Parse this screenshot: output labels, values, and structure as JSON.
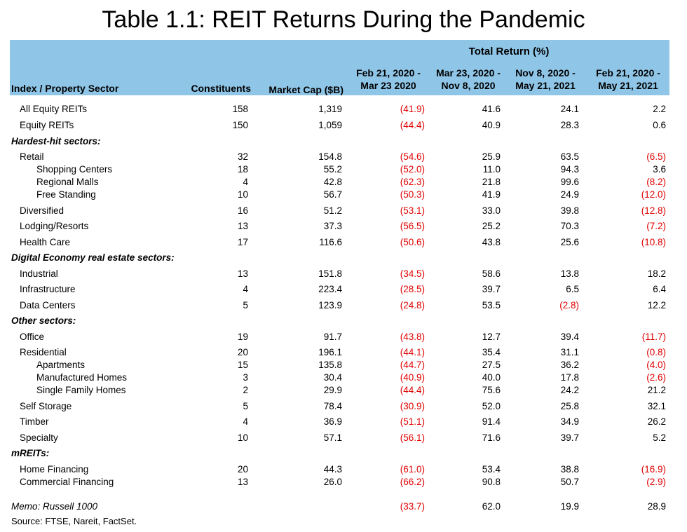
{
  "title": "Table 1.1: REIT Returns During the Pandemic",
  "header": {
    "group_label": "Total Return (%)",
    "col_sector": "Index / Property Sector",
    "col_constituents": "Constituents",
    "col_market_cap": "Market Cap ($B)",
    "periods": [
      [
        "Feb 21, 2020 -",
        "Mar 23 2020"
      ],
      [
        "Mar 23, 2020 -",
        "Nov 8, 2020"
      ],
      [
        "Nov 8, 2020 -",
        "May 21, 2021"
      ],
      [
        "Feb 21, 2020 -",
        "May 21, 2021"
      ]
    ]
  },
  "rows": [
    {
      "kind": "row",
      "name": "All Equity REITs",
      "constituents": "158",
      "market_cap": "1,319",
      "returns": [
        "(41.9)",
        "41.6",
        "24.1",
        "2.2"
      ]
    },
    {
      "kind": "row",
      "name": "Equity REITs",
      "constituents": "150",
      "market_cap": "1,059",
      "returns": [
        "(44.4)",
        "40.9",
        "28.3",
        "0.6"
      ]
    },
    {
      "kind": "section",
      "name": "Hardest-hit sectors:"
    },
    {
      "kind": "row",
      "name": "Retail",
      "constituents": "32",
      "market_cap": "154.8",
      "returns": [
        "(54.6)",
        "25.9",
        "63.5",
        "(6.5)"
      ]
    },
    {
      "kind": "sub",
      "name": "Shopping Centers",
      "constituents": "18",
      "market_cap": "55.2",
      "returns": [
        "(52.0)",
        "11.0",
        "94.3",
        "3.6"
      ]
    },
    {
      "kind": "sub",
      "name": "Regional Malls",
      "constituents": "4",
      "market_cap": "42.8",
      "returns": [
        "(62.3)",
        "21.8",
        "99.6",
        "(8.2)"
      ]
    },
    {
      "kind": "sub",
      "name": "Free Standing",
      "constituents": "10",
      "market_cap": "56.7",
      "returns": [
        "(50.3)",
        "41.9",
        "24.9",
        "(12.0)"
      ]
    },
    {
      "kind": "row",
      "name": "Diversified",
      "constituents": "16",
      "market_cap": "51.2",
      "returns": [
        "(53.1)",
        "33.0",
        "39.8",
        "(12.8)"
      ]
    },
    {
      "kind": "row",
      "name": "Lodging/Resorts",
      "constituents": "13",
      "market_cap": "37.3",
      "returns": [
        "(56.5)",
        "25.2",
        "70.3",
        "(7.2)"
      ]
    },
    {
      "kind": "row",
      "name": "Health Care",
      "constituents": "17",
      "market_cap": "116.6",
      "returns": [
        "(50.6)",
        "43.8",
        "25.6",
        "(10.8)"
      ]
    },
    {
      "kind": "section",
      "name": "Digital Economy real estate sectors:"
    },
    {
      "kind": "row",
      "name": "Industrial",
      "constituents": "13",
      "market_cap": "151.8",
      "returns": [
        "(34.5)",
        "58.6",
        "13.8",
        "18.2"
      ]
    },
    {
      "kind": "row",
      "name": "Infrastructure",
      "constituents": "4",
      "market_cap": "223.4",
      "returns": [
        "(28.5)",
        "39.7",
        "6.5",
        "6.4"
      ]
    },
    {
      "kind": "row",
      "name": "Data Centers",
      "constituents": "5",
      "market_cap": "123.9",
      "returns": [
        "(24.8)",
        "53.5",
        "(2.8)",
        "12.2"
      ]
    },
    {
      "kind": "section",
      "name": "Other sectors:"
    },
    {
      "kind": "row",
      "name": "Office",
      "constituents": "19",
      "market_cap": "91.7",
      "returns": [
        "(43.8)",
        "12.7",
        "39.4",
        "(11.7)"
      ]
    },
    {
      "kind": "row",
      "name": "Residential",
      "constituents": "20",
      "market_cap": "196.1",
      "returns": [
        "(44.1)",
        "35.4",
        "31.1",
        "(0.8)"
      ]
    },
    {
      "kind": "sub",
      "name": "Apartments",
      "constituents": "15",
      "market_cap": "135.8",
      "returns": [
        "(44.7)",
        "27.5",
        "36.2",
        "(4.0)"
      ]
    },
    {
      "kind": "sub",
      "name": "Manufactured Homes",
      "constituents": "3",
      "market_cap": "30.4",
      "returns": [
        "(40.9)",
        "40.0",
        "17.8",
        "(2.6)"
      ]
    },
    {
      "kind": "sub",
      "name": "Single Family Homes",
      "constituents": "2",
      "market_cap": "29.9",
      "returns": [
        "(44.4)",
        "75.6",
        "24.2",
        "21.2"
      ]
    },
    {
      "kind": "row",
      "name": "Self Storage",
      "constituents": "5",
      "market_cap": "78.4",
      "returns": [
        "(30.9)",
        "52.0",
        "25.8",
        "32.1"
      ]
    },
    {
      "kind": "row",
      "name": "Timber",
      "constituents": "4",
      "market_cap": "36.9",
      "returns": [
        "(51.1)",
        "91.4",
        "34.9",
        "26.2"
      ]
    },
    {
      "kind": "row",
      "name": "Specialty",
      "constituents": "10",
      "market_cap": "57.1",
      "returns": [
        "(56.1)",
        "71.6",
        "39.7",
        "5.2"
      ]
    },
    {
      "kind": "section",
      "name": "mREITs:"
    },
    {
      "kind": "row",
      "name": "Home Financing",
      "constituents": "20",
      "market_cap": "44.3",
      "returns": [
        "(61.0)",
        "53.4",
        "38.8",
        "(16.9)"
      ]
    },
    {
      "kind": "row",
      "name": "Commercial Financing",
      "constituents": "13",
      "market_cap": "26.0",
      "returns": [
        "(66.2)",
        "90.8",
        "50.7",
        "(2.9)"
      ]
    },
    {
      "kind": "memo",
      "name": "Memo: Russell 1000",
      "constituents": "",
      "market_cap": "",
      "returns": [
        "(33.7)",
        "62.0",
        "19.9",
        "28.9"
      ]
    }
  ],
  "source": "Source: FTSE, Nareit, FactSet.",
  "colors": {
    "header_bg": "#8fc6e8",
    "negative": "#e00000"
  }
}
